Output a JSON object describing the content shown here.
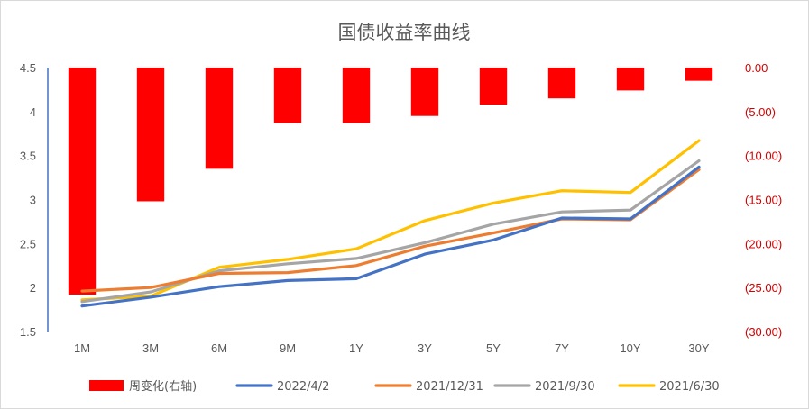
{
  "chart_data": {
    "type": "bar+line",
    "title": "国债收益率曲线",
    "categories": [
      "1M",
      "3M",
      "6M",
      "9M",
      "1Y",
      "3Y",
      "5Y",
      "7Y",
      "10Y",
      "30Y"
    ],
    "left_axis": {
      "ylim": [
        1.5,
        4.5
      ],
      "ticks": [
        "1.5",
        "2",
        "2.5",
        "3",
        "3.5",
        "4",
        "4.5"
      ],
      "tick_values": [
        1.5,
        2,
        2.5,
        3,
        3.5,
        4,
        4.5
      ]
    },
    "right_axis": {
      "ylim": [
        0,
        -30
      ],
      "ticks": [
        "0.00",
        "(5.00)",
        "(10.00)",
        "(15.00)",
        "(20.00)",
        "(25.00)",
        "(30.00)"
      ],
      "tick_values": [
        0,
        -5,
        -10,
        -15,
        -20,
        -25,
        -30
      ]
    },
    "bar_series": {
      "name": "周变化(右轴)",
      "axis": "right",
      "color": "#ff0000",
      "values": [
        -25.8,
        -15.2,
        -11.5,
        -6.3,
        -6.3,
        -5.5,
        -4.2,
        -3.5,
        -2.6,
        -1.5
      ]
    },
    "series": [
      {
        "name": "2022/4/2",
        "color": "#4472c4",
        "values": [
          1.79,
          1.89,
          2.01,
          2.08,
          2.1,
          2.38,
          2.54,
          2.79,
          2.78,
          3.37
        ]
      },
      {
        "name": "2021/12/31",
        "color": "#ed7d31",
        "values": [
          1.96,
          2.0,
          2.16,
          2.17,
          2.25,
          2.47,
          2.62,
          2.78,
          2.77,
          3.34
        ]
      },
      {
        "name": "2021/9/30",
        "color": "#a5a5a5",
        "values": [
          1.84,
          1.95,
          2.19,
          2.27,
          2.33,
          2.51,
          2.72,
          2.86,
          2.88,
          3.44
        ]
      },
      {
        "name": "2021/6/30",
        "color": "#ffc000",
        "values": [
          1.86,
          1.9,
          2.23,
          2.32,
          2.44,
          2.76,
          2.96,
          3.1,
          3.08,
          3.67
        ]
      }
    ],
    "grid": false,
    "legend_position": "bottom"
  }
}
